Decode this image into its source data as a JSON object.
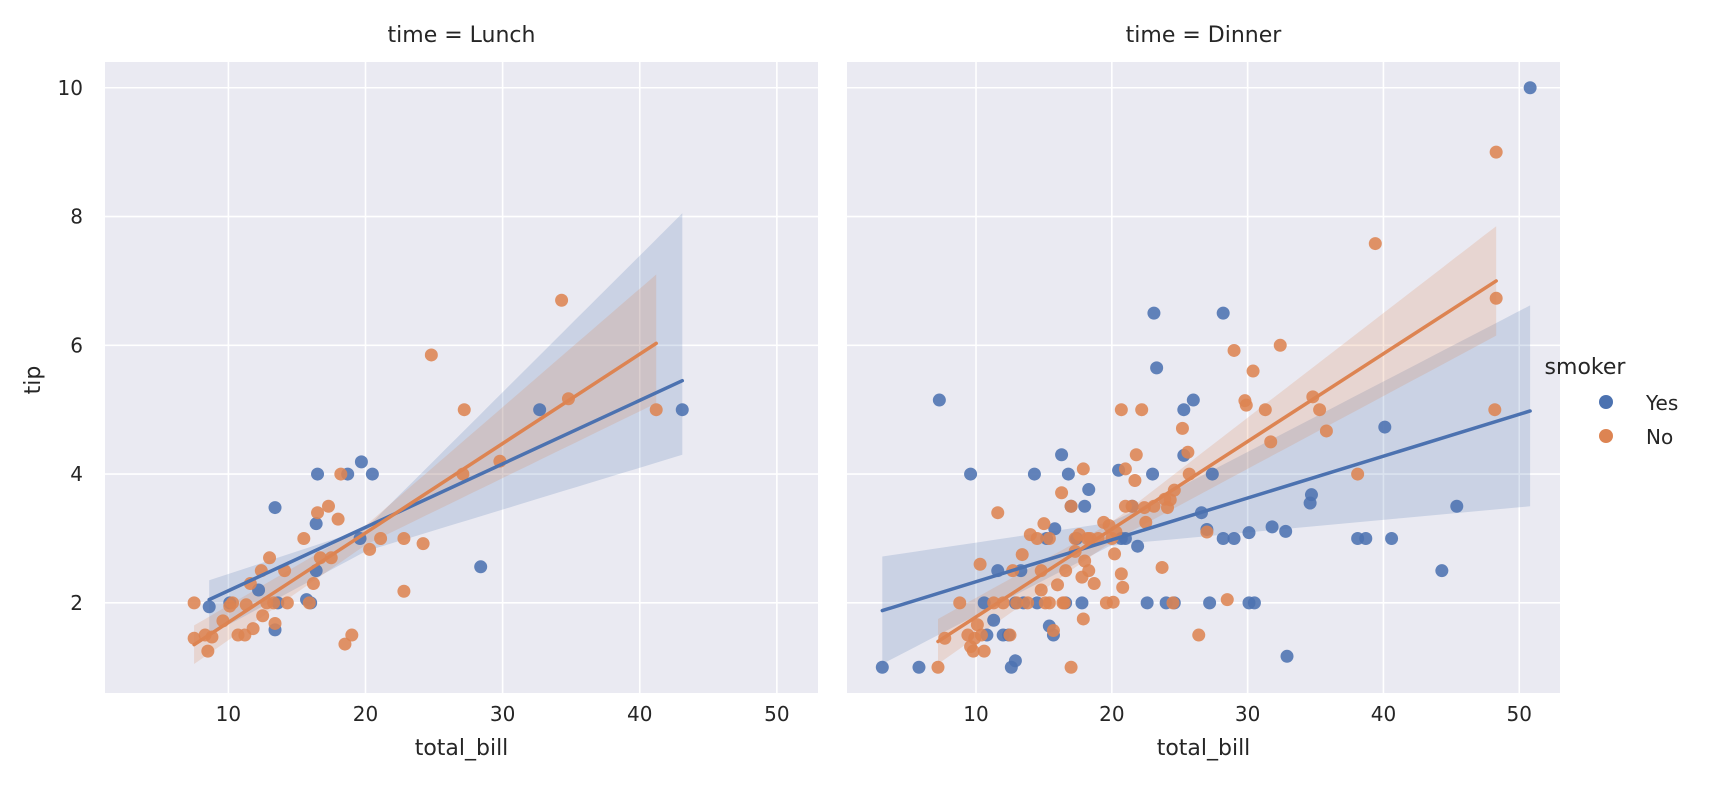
{
  "figure": {
    "ylabel": "tip",
    "legend": {
      "title": "smoker",
      "placement": "right-center",
      "entries": [
        "Yes",
        "No"
      ]
    }
  },
  "colors": {
    "Yes": "#4c72b0",
    "No": "#dd8452",
    "panel_bg": "#eaeaf2",
    "grid": "#ffffff",
    "text": "#262626"
  },
  "chart_data": [
    {
      "type": "scatter",
      "title": "time = Lunch",
      "xlabel": "total_bill",
      "ylabel": "tip",
      "xlim": [
        1,
        53
      ],
      "ylim": [
        0.6,
        10.4
      ],
      "xticks": [
        10,
        20,
        30,
        40,
        50
      ],
      "yticks": [
        2,
        4,
        6,
        8,
        10
      ],
      "grid": true,
      "series": [
        {
          "name": "Yes",
          "points": [
            [
              8.6,
              1.94
            ],
            [
              10.1,
              2.0
            ],
            [
              12.2,
              2.2
            ],
            [
              13.4,
              3.48
            ],
            [
              13.4,
              1.58
            ],
            [
              13.6,
              2.0
            ],
            [
              15.7,
              2.05
            ],
            [
              16.0,
              2.0
            ],
            [
              16.4,
              3.23
            ],
            [
              16.4,
              2.5
            ],
            [
              16.5,
              4.0
            ],
            [
              18.7,
              4.0
            ],
            [
              19.7,
              4.19
            ],
            [
              20.5,
              4.0
            ],
            [
              19.6,
              3.0
            ],
            [
              28.4,
              2.56
            ],
            [
              32.7,
              5.0
            ],
            [
              43.1,
              5.0
            ]
          ],
          "fit": {
            "x": [
              8.6,
              43.1
            ],
            "y": [
              2.05,
              5.45
            ]
          },
          "ci": {
            "x": [
              8.6,
              20,
              43.1
            ],
            "lower": [
              1.5,
              2.8,
              4.3
            ],
            "upper": [
              2.35,
              3.15,
              8.05
            ]
          }
        },
        {
          "name": "No",
          "points": [
            [
              7.5,
              2.0
            ],
            [
              7.5,
              1.45
            ],
            [
              8.3,
              1.5
            ],
            [
              8.5,
              1.25
            ],
            [
              8.8,
              1.47
            ],
            [
              9.6,
              1.72
            ],
            [
              10.1,
              1.95
            ],
            [
              10.3,
              2.0
            ],
            [
              10.7,
              1.5
            ],
            [
              11.2,
              1.5
            ],
            [
              11.3,
              1.97
            ],
            [
              11.8,
              1.6
            ],
            [
              11.6,
              2.3
            ],
            [
              12.4,
              2.5
            ],
            [
              12.5,
              1.8
            ],
            [
              12.8,
              2.0
            ],
            [
              13.0,
              2.7
            ],
            [
              13.3,
              2.0
            ],
            [
              13.4,
              1.68
            ],
            [
              14.1,
              2.5
            ],
            [
              14.3,
              2.0
            ],
            [
              15.5,
              3.0
            ],
            [
              15.9,
              2.0
            ],
            [
              16.2,
              2.3
            ],
            [
              16.5,
              3.4
            ],
            [
              16.7,
              2.7
            ],
            [
              17.3,
              3.5
            ],
            [
              17.5,
              2.7
            ],
            [
              18.0,
              3.3
            ],
            [
              18.2,
              4.0
            ],
            [
              18.5,
              1.36
            ],
            [
              19.0,
              1.5
            ],
            [
              20.3,
              2.83
            ],
            [
              21.1,
              3.0
            ],
            [
              22.8,
              3.0
            ],
            [
              22.8,
              2.18
            ],
            [
              24.2,
              2.92
            ],
            [
              24.8,
              5.85
            ],
            [
              27.2,
              5.0
            ],
            [
              27.1,
              4.0
            ],
            [
              29.8,
              4.2
            ],
            [
              34.3,
              6.7
            ],
            [
              34.8,
              5.17
            ],
            [
              41.2,
              5.0
            ]
          ],
          "fit": {
            "x": [
              7.5,
              41.2
            ],
            "y": [
              1.35,
              6.03
            ]
          },
          "ci": {
            "x": [
              7.5,
              20,
              41.2
            ],
            "lower": [
              1.05,
              2.9,
              5.1
            ],
            "upper": [
              1.65,
              3.2,
              7.1
            ]
          }
        }
      ]
    },
    {
      "type": "scatter",
      "title": "time = Dinner",
      "xlabel": "total_bill",
      "ylabel": "",
      "xlim": [
        0.5,
        53
      ],
      "ylim": [
        0.6,
        10.4
      ],
      "xticks": [
        10,
        20,
        30,
        40,
        50
      ],
      "yticks": [
        2,
        4,
        6,
        8,
        10
      ],
      "grid": true,
      "series": [
        {
          "name": "Yes",
          "points": [
            [
              3.1,
              1.0
            ],
            [
              5.8,
              1.0
            ],
            [
              7.3,
              5.15
            ],
            [
              9.6,
              4.0
            ],
            [
              10.6,
              2.0
            ],
            [
              10.8,
              1.5
            ],
            [
              11.3,
              1.73
            ],
            [
              11.6,
              2.5
            ],
            [
              12.0,
              1.5
            ],
            [
              12.4,
              1.5
            ],
            [
              12.6,
              1.0
            ],
            [
              12.9,
              1.1
            ],
            [
              12.9,
              2.0
            ],
            [
              13.3,
              2.5
            ],
            [
              13.5,
              2.0
            ],
            [
              14.3,
              4.0
            ],
            [
              14.5,
              2.0
            ],
            [
              15.2,
              3.0
            ],
            [
              15.4,
              1.64
            ],
            [
              15.7,
              1.5
            ],
            [
              15.8,
              3.15
            ],
            [
              16.3,
              4.3
            ],
            [
              16.6,
              2.0
            ],
            [
              16.8,
              4.0
            ],
            [
              17.0,
              3.5
            ],
            [
              17.4,
              3.0
            ],
            [
              17.8,
              2.0
            ],
            [
              18.0,
              3.5
            ],
            [
              18.3,
              3.76
            ],
            [
              20.5,
              4.06
            ],
            [
              20.7,
              3.0
            ],
            [
              21.0,
              3.0
            ],
            [
              21.5,
              3.5
            ],
            [
              21.9,
              2.88
            ],
            [
              22.6,
              2.0
            ],
            [
              23.0,
              4.0
            ],
            [
              23.1,
              6.5
            ],
            [
              23.3,
              5.65
            ],
            [
              24.0,
              2.0
            ],
            [
              24.6,
              2.0
            ],
            [
              25.3,
              5.0
            ],
            [
              25.3,
              4.29
            ],
            [
              26.0,
              5.15
            ],
            [
              26.6,
              3.4
            ],
            [
              27.0,
              3.14
            ],
            [
              27.2,
              2.0
            ],
            [
              27.4,
              4.0
            ],
            [
              28.2,
              6.5
            ],
            [
              28.2,
              3.0
            ],
            [
              29.0,
              3.0
            ],
            [
              30.1,
              3.09
            ],
            [
              30.1,
              2.0
            ],
            [
              30.5,
              2.0
            ],
            [
              31.8,
              3.18
            ],
            [
              32.8,
              3.11
            ],
            [
              32.9,
              1.17
            ],
            [
              34.7,
              3.68
            ],
            [
              34.6,
              3.55
            ],
            [
              38.1,
              3.0
            ],
            [
              38.7,
              3.0
            ],
            [
              40.1,
              4.73
            ],
            [
              40.6,
              3.0
            ],
            [
              44.3,
              2.5
            ],
            [
              45.4,
              3.5
            ],
            [
              50.8,
              10.0
            ]
          ],
          "fit": {
            "x": [
              3.1,
              50.8
            ],
            "y": [
              1.88,
              4.98
            ]
          },
          "ci": {
            "x": [
              3.1,
              20,
              50.8
            ],
            "lower": [
              1.05,
              2.9,
              3.5
            ],
            "upper": [
              2.72,
              3.25,
              6.62
            ]
          }
        },
        {
          "name": "No",
          "points": [
            [
              7.2,
              1.0
            ],
            [
              7.7,
              1.45
            ],
            [
              8.8,
              2.0
            ],
            [
              9.4,
              1.5
            ],
            [
              9.6,
              1.32
            ],
            [
              9.8,
              1.25
            ],
            [
              9.9,
              1.45
            ],
            [
              10.1,
              1.66
            ],
            [
              10.3,
              2.6
            ],
            [
              10.4,
              1.5
            ],
            [
              10.6,
              1.25
            ],
            [
              11.3,
              2.0
            ],
            [
              11.6,
              3.4
            ],
            [
              12.0,
              2.0
            ],
            [
              12.5,
              1.5
            ],
            [
              12.7,
              2.5
            ],
            [
              13.0,
              2.0
            ],
            [
              13.4,
              2.75
            ],
            [
              13.8,
              2.0
            ],
            [
              14.0,
              3.06
            ],
            [
              14.5,
              3.0
            ],
            [
              14.8,
              2.5
            ],
            [
              14.8,
              2.2
            ],
            [
              15.0,
              3.23
            ],
            [
              15.1,
              2.0
            ],
            [
              15.4,
              2.0
            ],
            [
              15.4,
              3.0
            ],
            [
              15.7,
              1.57
            ],
            [
              16.0,
              2.28
            ],
            [
              16.3,
              3.71
            ],
            [
              16.4,
              2.0
            ],
            [
              16.5,
              2.0
            ],
            [
              16.6,
              2.5
            ],
            [
              17.0,
              3.5
            ],
            [
              17.0,
              1.0
            ],
            [
              17.3,
              3.0
            ],
            [
              17.3,
              2.8
            ],
            [
              17.6,
              3.06
            ],
            [
              17.8,
              2.4
            ],
            [
              17.9,
              1.75
            ],
            [
              17.9,
              4.08
            ],
            [
              18.0,
              2.65
            ],
            [
              18.2,
              3.0
            ],
            [
              18.3,
              2.5
            ],
            [
              18.4,
              3.0
            ],
            [
              18.7,
              2.3
            ],
            [
              19.0,
              3.0
            ],
            [
              19.4,
              3.25
            ],
            [
              19.6,
              2.0
            ],
            [
              19.8,
              3.2
            ],
            [
              20.0,
              3.0
            ],
            [
              20.1,
              2.01
            ],
            [
              20.2,
              2.76
            ],
            [
              20.3,
              3.1
            ],
            [
              20.7,
              2.45
            ],
            [
              20.8,
              2.24
            ],
            [
              20.7,
              5.0
            ],
            [
              21.0,
              4.08
            ],
            [
              21.0,
              3.5
            ],
            [
              21.5,
              3.5
            ],
            [
              21.7,
              3.9
            ],
            [
              21.8,
              4.3
            ],
            [
              22.2,
              5.0
            ],
            [
              22.4,
              3.48
            ],
            [
              22.5,
              3.25
            ],
            [
              23.1,
              3.5
            ],
            [
              23.7,
              2.55
            ],
            [
              23.9,
              3.61
            ],
            [
              24.1,
              3.48
            ],
            [
              24.3,
              3.6
            ],
            [
              24.5,
              2.0
            ],
            [
              24.6,
              3.75
            ],
            [
              25.2,
              4.71
            ],
            [
              25.6,
              4.34
            ],
            [
              25.7,
              4.0
            ],
            [
              26.4,
              1.5
            ],
            [
              27.0,
              3.1
            ],
            [
              28.5,
              2.05
            ],
            [
              29.0,
              5.92
            ],
            [
              29.8,
              5.14
            ],
            [
              29.9,
              5.07
            ],
            [
              30.4,
              5.6
            ],
            [
              31.3,
              5.0
            ],
            [
              31.7,
              4.5
            ],
            [
              32.4,
              6.0
            ],
            [
              34.8,
              5.2
            ],
            [
              35.3,
              5.0
            ],
            [
              35.8,
              4.67
            ],
            [
              38.1,
              4.0
            ],
            [
              39.4,
              7.58
            ],
            [
              48.2,
              5.0
            ],
            [
              48.3,
              6.73
            ],
            [
              48.3,
              9.0
            ]
          ],
          "fit": {
            "x": [
              7.2,
              48.3
            ],
            "y": [
              1.4,
              7.0
            ]
          },
          "ci": {
            "x": [
              7.2,
              20,
              48.3
            ],
            "lower": [
              1.05,
              2.95,
              6.15
            ],
            "upper": [
              1.75,
              3.25,
              7.85
            ]
          }
        }
      ]
    }
  ]
}
